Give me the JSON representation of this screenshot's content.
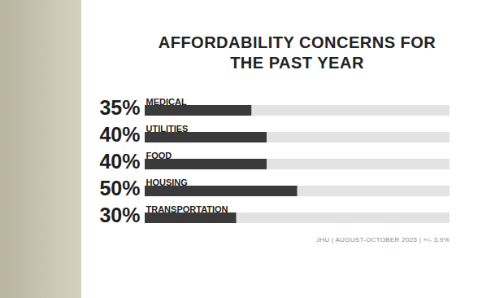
{
  "chart_data": {
    "type": "bar",
    "orientation": "horizontal",
    "title": "AFFORDABILITY CONCERNS FOR THE PAST YEAR",
    "categories": [
      "MEDICAL",
      "UTILITIES",
      "FOOD",
      "HOUSING",
      "TRANSPORTATION"
    ],
    "values": [
      35,
      40,
      40,
      50,
      30
    ],
    "value_labels": [
      "35%",
      "40%",
      "40%",
      "50%",
      "30%"
    ],
    "data_labels": true,
    "color": "#3a3a3a",
    "xlim": [
      0,
      100
    ],
    "tick_labels": false,
    "grid": false,
    "caption": "JHU | AUGUST-OCTOBER 2025 | +/- 3.9%"
  }
}
